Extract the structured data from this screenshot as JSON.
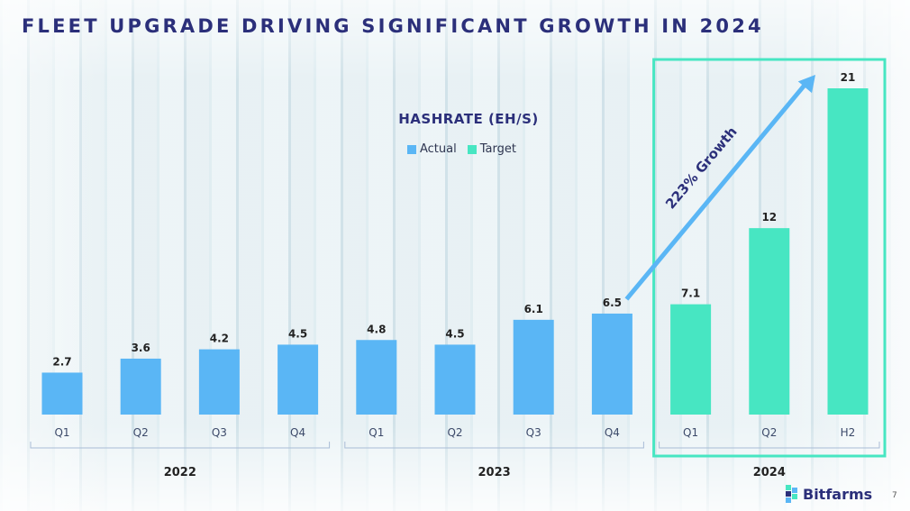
{
  "slide": {
    "title": "FLEET UPGRADE DRIVING SIGNIFICANT GROWTH IN 2024",
    "page_number": "7",
    "logo_text": "Bitfarms"
  },
  "chart_data": {
    "type": "bar",
    "title": "HASHRATE (EH/S)",
    "ylabel": "EH/s",
    "xlabel": "",
    "ylim": [
      0,
      21
    ],
    "legend": [
      {
        "name": "Actual",
        "color": "#5ab6f5"
      },
      {
        "name": "Target",
        "color": "#47e6c2"
      }
    ],
    "categories": [
      "Q1",
      "Q2",
      "Q3",
      "Q4",
      "Q1",
      "Q2",
      "Q3",
      "Q4",
      "Q1",
      "Q2",
      "H2"
    ],
    "years": [
      {
        "label": "2022",
        "count": 4
      },
      {
        "label": "2023",
        "count": 4
      },
      {
        "label": "2024",
        "count": 3
      }
    ],
    "values": [
      2.7,
      3.6,
      4.2,
      4.5,
      4.8,
      4.5,
      6.1,
      6.5,
      7.1,
      12,
      21
    ],
    "value_labels": [
      "2.7",
      "3.6",
      "4.2",
      "4.5",
      "4.8",
      "4.5",
      "6.1",
      "6.5",
      "7.1",
      "12",
      "21"
    ],
    "series_of_bar": [
      "Actual",
      "Actual",
      "Actual",
      "Actual",
      "Actual",
      "Actual",
      "Actual",
      "Actual",
      "Target",
      "Target",
      "Target"
    ],
    "annotation": {
      "text": "223% Growth",
      "from_index": 7,
      "to_index": 10
    },
    "highlight_year": "2024"
  }
}
